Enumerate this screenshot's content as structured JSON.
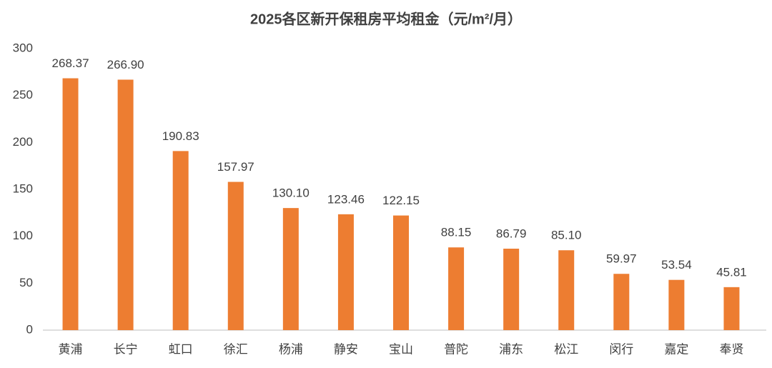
{
  "chart_data": {
    "type": "bar",
    "title": "2025各区新开保租房平均租金（元/m²/月）",
    "categories": [
      "黄浦",
      "长宁",
      "虹口",
      "徐汇",
      "杨浦",
      "静安",
      "宝山",
      "普陀",
      "浦东",
      "松江",
      "闵行",
      "嘉定",
      "奉贤"
    ],
    "values": [
      268.37,
      266.9,
      190.83,
      157.97,
      130.1,
      123.46,
      122.15,
      88.15,
      86.79,
      85.1,
      59.97,
      53.54,
      45.81
    ],
    "value_labels": [
      "268.37",
      "266.90",
      "190.83",
      "157.97",
      "130.10",
      "123.46",
      "122.15",
      "88.15",
      "86.79",
      "85.10",
      "59.97",
      "53.54",
      "45.81"
    ],
    "color": "#ed7d31",
    "ylim": [
      0,
      300
    ],
    "yticks": [
      0,
      50,
      100,
      150,
      200,
      250,
      300
    ],
    "grid": false
  }
}
